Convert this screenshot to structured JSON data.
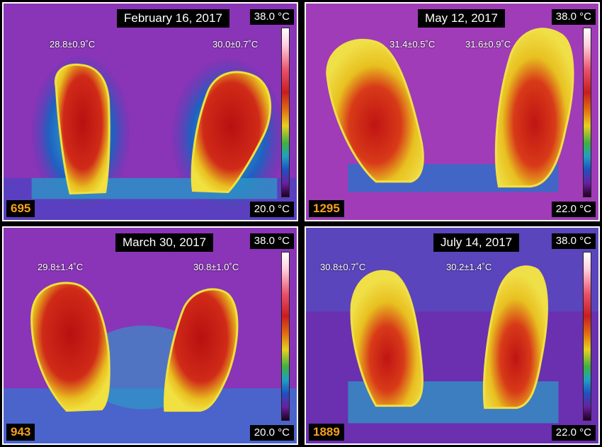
{
  "panels": [
    {
      "date": "February 16, 2017",
      "max": "38.0 °C",
      "min": "20.0 °C",
      "frame": "695",
      "left_temp": "28.8±0.9˚C",
      "right_temp": "30.0±0.7˚C"
    },
    {
      "date": "May 12, 2017",
      "max": "38.0 °C",
      "min": "22.0 °C",
      "frame": "1295",
      "left_temp": "31.4±0.5˚C",
      "right_temp": "31.6±0.9˚C"
    },
    {
      "date": "March 30, 2017",
      "max": "38.0 °C",
      "min": "20.0 °C",
      "frame": "943",
      "left_temp": "29.8±1.4˚C",
      "right_temp": "30.8±1.0˚C"
    },
    {
      "date": "July 14, 2017",
      "max": "38.0 °C",
      "min": "22.0 °C",
      "frame": "1889",
      "left_temp": "30.8±0.7˚C",
      "right_temp": "30.2±1.4˚C"
    }
  ],
  "colors": {
    "background": "#7a2fb0",
    "hot": "#c81e1e",
    "warm": "#e8d020",
    "cool": "#20a0c0",
    "frame_number": "#f5a020"
  }
}
